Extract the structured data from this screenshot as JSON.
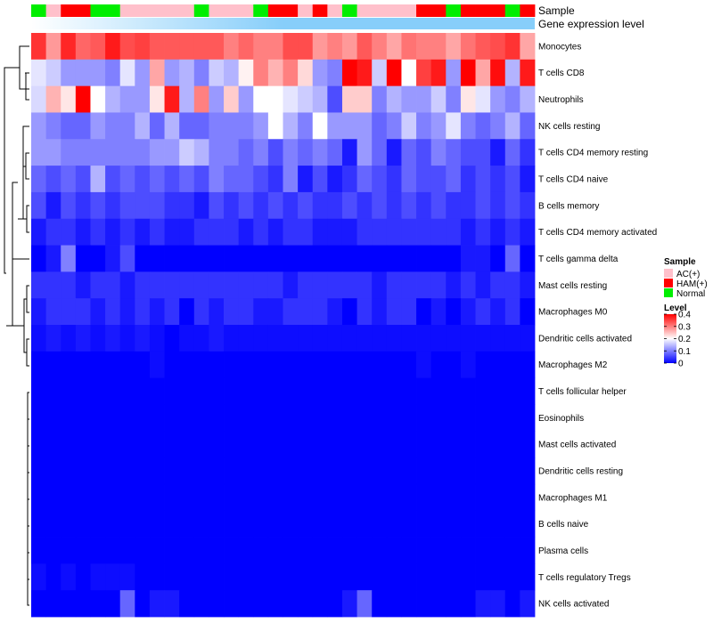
{
  "chart_data": {
    "type": "heatmap",
    "title": "",
    "annotation_labels": {
      "sample": "Sample",
      "expression": "Gene expression level"
    },
    "sample_groups": [
      "Normal",
      "AC(+)",
      "HAM(+)",
      "HAM(+)",
      "Normal",
      "Normal",
      "AC(+)",
      "AC(+)",
      "AC(+)",
      "AC(+)",
      "AC(+)",
      "Normal",
      "AC(+)",
      "AC(+)",
      "AC(+)",
      "Normal",
      "HAM(+)",
      "HAM(+)",
      "AC(+)",
      "HAM(+)",
      "AC(+)",
      "Normal",
      "AC(+)",
      "AC(+)",
      "AC(+)",
      "AC(+)",
      "HAM(+)",
      "HAM(+)",
      "Normal",
      "HAM(+)",
      "HAM(+)",
      "HAM(+)",
      "Normal",
      "HAM(+)"
    ],
    "rows": [
      "Monocytes",
      "T cells CD8",
      "Neutrophils",
      "NK cells resting",
      "T cells CD4 memory resting",
      "T cells CD4 naive",
      "B cells memory",
      "T cells CD4 memory activated",
      "T cells gamma delta",
      "Mast cells resting",
      "Macrophages M0",
      "Dendritic cells activated",
      "Macrophages M2",
      "T cells follicular helper",
      "Eosinophils",
      "Mast cells activated",
      "Dendritic cells resting",
      "Macrophages M1",
      "B cells naive",
      "Plasma cells",
      "T cells regulatory  Tregs",
      "NK cells activated"
    ],
    "values": [
      [
        0.36,
        0.28,
        0.37,
        0.32,
        0.33,
        0.38,
        0.34,
        0.35,
        0.33,
        0.33,
        0.33,
        0.33,
        0.33,
        0.3,
        0.32,
        0.3,
        0.3,
        0.34,
        0.34,
        0.28,
        0.3,
        0.28,
        0.33,
        0.3,
        0.27,
        0.31,
        0.3,
        0.3,
        0.27,
        0.31,
        0.33,
        0.34,
        0.36,
        0.27
      ],
      [
        0.18,
        0.16,
        0.12,
        0.12,
        0.12,
        0.1,
        0.18,
        0.12,
        0.27,
        0.12,
        0.14,
        0.1,
        0.16,
        0.14,
        0.21,
        0.3,
        0.26,
        0.3,
        0.23,
        0.12,
        0.1,
        0.4,
        0.38,
        0.16,
        0.4,
        0.2,
        0.35,
        0.38,
        0.12,
        0.4,
        0.27,
        0.39,
        0.14,
        0.38
      ],
      [
        0.17,
        0.26,
        0.22,
        0.4,
        0.2,
        0.14,
        0.12,
        0.12,
        0.22,
        0.38,
        0.14,
        0.3,
        0.12,
        0.24,
        0.12,
        0.2,
        0.2,
        0.18,
        0.16,
        0.14,
        0.06,
        0.24,
        0.24,
        0.1,
        0.14,
        0.12,
        0.12,
        0.16,
        0.1,
        0.22,
        0.18,
        0.12,
        0.1,
        0.14
      ],
      [
        0.12,
        0.1,
        0.08,
        0.08,
        0.12,
        0.1,
        0.1,
        0.14,
        0.08,
        0.14,
        0.08,
        0.08,
        0.1,
        0.1,
        0.1,
        0.12,
        0.2,
        0.14,
        0.1,
        0.2,
        0.12,
        0.12,
        0.12,
        0.08,
        0.1,
        0.16,
        0.1,
        0.12,
        0.18,
        0.1,
        0.08,
        0.1,
        0.14,
        0.08
      ],
      [
        0.12,
        0.12,
        0.1,
        0.1,
        0.1,
        0.1,
        0.1,
        0.1,
        0.12,
        0.12,
        0.16,
        0.14,
        0.1,
        0.1,
        0.08,
        0.1,
        0.06,
        0.1,
        0.08,
        0.1,
        0.08,
        0.02,
        0.12,
        0.08,
        0.02,
        0.08,
        0.06,
        0.1,
        0.08,
        0.06,
        0.06,
        0.02,
        0.08,
        0.04
      ],
      [
        0.08,
        0.06,
        0.08,
        0.06,
        0.14,
        0.06,
        0.08,
        0.06,
        0.08,
        0.06,
        0.08,
        0.06,
        0.1,
        0.08,
        0.08,
        0.06,
        0.04,
        0.1,
        0.02,
        0.06,
        0.02,
        0.04,
        0.08,
        0.06,
        0.04,
        0.08,
        0.06,
        0.06,
        0.08,
        0.04,
        0.06,
        0.04,
        0.06,
        0.02
      ],
      [
        0.06,
        0.02,
        0.06,
        0.04,
        0.06,
        0.04,
        0.06,
        0.06,
        0.06,
        0.04,
        0.04,
        0.02,
        0.06,
        0.04,
        0.06,
        0.04,
        0.06,
        0.04,
        0.06,
        0.04,
        0.04,
        0.06,
        0.04,
        0.06,
        0.04,
        0.06,
        0.04,
        0.06,
        0.04,
        0.04,
        0.06,
        0.04,
        0.06,
        0.04
      ],
      [
        0.02,
        0.04,
        0.04,
        0.02,
        0.04,
        0.02,
        0.04,
        0.02,
        0.04,
        0.02,
        0.02,
        0.04,
        0.04,
        0.04,
        0.02,
        0.04,
        0.02,
        0.04,
        0.04,
        0.02,
        0.02,
        0.02,
        0.04,
        0.04,
        0.04,
        0.04,
        0.04,
        0.04,
        0.04,
        0.02,
        0.04,
        0.02,
        0.04,
        0.02
      ],
      [
        0.0,
        0.02,
        0.1,
        0.0,
        0.0,
        0.02,
        0.06,
        0.0,
        0.0,
        0.0,
        0.0,
        0.0,
        0.0,
        0.0,
        0.0,
        0.0,
        0.0,
        0.0,
        0.0,
        0.0,
        0.0,
        0.0,
        0.0,
        0.0,
        0.0,
        0.0,
        0.0,
        0.0,
        0.0,
        0.02,
        0.02,
        0.0,
        0.08,
        0.0
      ],
      [
        0.04,
        0.04,
        0.04,
        0.02,
        0.04,
        0.04,
        0.02,
        0.04,
        0.04,
        0.04,
        0.04,
        0.04,
        0.04,
        0.04,
        0.04,
        0.04,
        0.04,
        0.02,
        0.04,
        0.04,
        0.04,
        0.04,
        0.04,
        0.02,
        0.04,
        0.04,
        0.04,
        0.04,
        0.02,
        0.04,
        0.02,
        0.04,
        0.04,
        0.02
      ],
      [
        0.02,
        0.04,
        0.04,
        0.04,
        0.02,
        0.04,
        0.02,
        0.04,
        0.02,
        0.04,
        0.0,
        0.04,
        0.02,
        0.04,
        0.04,
        0.02,
        0.02,
        0.04,
        0.04,
        0.04,
        0.02,
        0.0,
        0.04,
        0.02,
        0.04,
        0.04,
        0.0,
        0.02,
        0.0,
        0.02,
        0.04,
        0.02,
        0.04,
        0.0
      ],
      [
        0.01,
        0.02,
        0.01,
        0.02,
        0.01,
        0.02,
        0.01,
        0.02,
        0.01,
        0.0,
        0.01,
        0.01,
        0.02,
        0.01,
        0.01,
        0.01,
        0.01,
        0.01,
        0.01,
        0.01,
        0.01,
        0.01,
        0.01,
        0.01,
        0.01,
        0.01,
        0.01,
        0.01,
        0.01,
        0.01,
        0.01,
        0.01,
        0.01,
        0.01
      ],
      [
        0.0,
        0.0,
        0.0,
        0.0,
        0.0,
        0.0,
        0.0,
        0.0,
        0.01,
        0.0,
        0.0,
        0.0,
        0.0,
        0.0,
        0.0,
        0.0,
        0.0,
        0.0,
        0.0,
        0.0,
        0.0,
        0.0,
        0.0,
        0.0,
        0.0,
        0.0,
        0.01,
        0.0,
        0.0,
        0.01,
        0.0,
        0.0,
        0.0,
        0.0
      ],
      [
        0.0,
        0.0,
        0.0,
        0.0,
        0.0,
        0.0,
        0.0,
        0.0,
        0.0,
        0.0,
        0.0,
        0.0,
        0.0,
        0.0,
        0.0,
        0.0,
        0.0,
        0.0,
        0.0,
        0.0,
        0.0,
        0.0,
        0.0,
        0.0,
        0.0,
        0.0,
        0.0,
        0.0,
        0.0,
        0.0,
        0.0,
        0.0,
        0.0,
        0.0
      ],
      [
        0.0,
        0.0,
        0.0,
        0.0,
        0.0,
        0.0,
        0.0,
        0.0,
        0.0,
        0.0,
        0.0,
        0.0,
        0.0,
        0.0,
        0.0,
        0.0,
        0.0,
        0.0,
        0.0,
        0.0,
        0.0,
        0.0,
        0.0,
        0.0,
        0.0,
        0.0,
        0.0,
        0.0,
        0.0,
        0.0,
        0.0,
        0.0,
        0.0,
        0.0
      ],
      [
        0.0,
        0.0,
        0.0,
        0.0,
        0.0,
        0.0,
        0.0,
        0.0,
        0.0,
        0.0,
        0.0,
        0.0,
        0.0,
        0.0,
        0.0,
        0.0,
        0.0,
        0.0,
        0.0,
        0.0,
        0.0,
        0.0,
        0.0,
        0.0,
        0.0,
        0.0,
        0.0,
        0.0,
        0.0,
        0.0,
        0.0,
        0.0,
        0.0,
        0.0
      ],
      [
        0.0,
        0.0,
        0.0,
        0.0,
        0.0,
        0.0,
        0.0,
        0.0,
        0.0,
        0.0,
        0.0,
        0.0,
        0.0,
        0.0,
        0.0,
        0.0,
        0.0,
        0.0,
        0.0,
        0.0,
        0.0,
        0.0,
        0.0,
        0.0,
        0.0,
        0.0,
        0.0,
        0.0,
        0.0,
        0.0,
        0.0,
        0.0,
        0.0,
        0.0
      ],
      [
        0.0,
        0.0,
        0.0,
        0.0,
        0.0,
        0.0,
        0.0,
        0.0,
        0.0,
        0.0,
        0.0,
        0.0,
        0.0,
        0.0,
        0.0,
        0.0,
        0.0,
        0.0,
        0.0,
        0.0,
        0.0,
        0.0,
        0.0,
        0.0,
        0.0,
        0.0,
        0.0,
        0.0,
        0.0,
        0.0,
        0.0,
        0.0,
        0.0,
        0.0
      ],
      [
        0.0,
        0.0,
        0.0,
        0.0,
        0.0,
        0.0,
        0.0,
        0.0,
        0.0,
        0.0,
        0.0,
        0.0,
        0.0,
        0.0,
        0.0,
        0.0,
        0.0,
        0.0,
        0.0,
        0.0,
        0.0,
        0.0,
        0.0,
        0.0,
        0.0,
        0.0,
        0.0,
        0.0,
        0.0,
        0.0,
        0.0,
        0.0,
        0.0,
        0.0
      ],
      [
        0.0,
        0.0,
        0.0,
        0.0,
        0.0,
        0.0,
        0.0,
        0.0,
        0.0,
        0.0,
        0.0,
        0.0,
        0.0,
        0.0,
        0.0,
        0.0,
        0.0,
        0.0,
        0.0,
        0.0,
        0.0,
        0.0,
        0.0,
        0.0,
        0.0,
        0.0,
        0.0,
        0.0,
        0.0,
        0.0,
        0.0,
        0.0,
        0.0,
        0.0
      ],
      [
        0.01,
        0.0,
        0.01,
        0.0,
        0.01,
        0.01,
        0.01,
        0.0,
        0.0,
        0.0,
        0.0,
        0.0,
        0.0,
        0.0,
        0.0,
        0.0,
        0.0,
        0.0,
        0.0,
        0.0,
        0.0,
        0.0,
        0.0,
        0.0,
        0.0,
        0.0,
        0.0,
        0.0,
        0.0,
        0.0,
        0.0,
        0.0,
        0.0,
        0.0
      ],
      [
        0.0,
        0.0,
        0.0,
        0.0,
        0.0,
        0.0,
        0.08,
        0.0,
        0.02,
        0.02,
        0.0,
        0.0,
        0.0,
        0.0,
        0.0,
        0.0,
        0.0,
        0.0,
        0.0,
        0.0,
        0.0,
        0.02,
        0.08,
        0.0,
        0.0,
        0.0,
        0.0,
        0.0,
        0.0,
        0.0,
        0.02,
        0.02,
        0.0,
        0.02
      ]
    ],
    "legend": {
      "sample_title": "Sample",
      "groups": [
        {
          "name": "AC(+)",
          "color": "#ffc0cb"
        },
        {
          "name": "HAM(+)",
          "color": "#ff0000"
        },
        {
          "name": "Normal",
          "color": "#00ee00"
        }
      ],
      "level_title": "Level",
      "ticks": [
        0.4,
        0.3,
        0.2,
        0.1,
        0
      ],
      "range": [
        0,
        0.4
      ]
    },
    "colors": {
      "low": "#0000ff",
      "mid": "#ffffff",
      "high": "#ff0000",
      "expression_bar": "#87cefa"
    }
  }
}
